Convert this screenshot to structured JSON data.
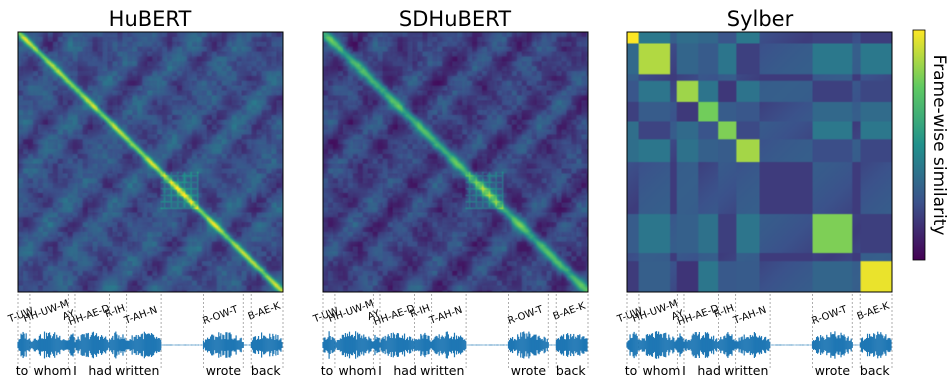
{
  "chart_data": {
    "type": "heatmap",
    "colormap": "viridis",
    "colorbar": {
      "label": "Frame-wise similarity"
    },
    "phoneme_segments": [
      {
        "label": "T-UW",
        "start": 0.0,
        "end": 0.045
      },
      {
        "label": "HH-UW-M",
        "start": 0.045,
        "end": 0.19
      },
      {
        "label": "AY",
        "start": 0.19,
        "end": 0.215
      },
      {
        "label": "HH-AE-D",
        "start": 0.215,
        "end": 0.345
      },
      {
        "label": "R-IH",
        "start": 0.345,
        "end": 0.41
      },
      {
        "label": "T-AH-N",
        "start": 0.41,
        "end": 0.54
      },
      {
        "label": "R-OW-T",
        "start": 0.7,
        "end": 0.85
      },
      {
        "label": "B-AE-K",
        "start": 0.88,
        "end": 1.0
      }
    ],
    "words": [
      {
        "label": "to",
        "pos": 0.015
      },
      {
        "label": "whom",
        "pos": 0.13
      },
      {
        "label": "I",
        "pos": 0.215
      },
      {
        "label": "had",
        "pos": 0.31
      },
      {
        "label": "written",
        "pos": 0.45
      },
      {
        "label": "wrote",
        "pos": 0.775
      },
      {
        "label": "back",
        "pos": 0.935
      }
    ],
    "panels": [
      {
        "title": "HuBERT",
        "model": "frame-level",
        "diagonal_similarity": 0.85,
        "off_diagonal_similarity": 0.25,
        "band_width": 0.04
      },
      {
        "title": "SDHuBERT",
        "model": "frame-level",
        "diagonal_similarity": 0.65,
        "off_diagonal_similarity": 0.2,
        "band_width": 0.06
      },
      {
        "title": "Sylber",
        "model": "segment-level",
        "background_similarity": 0.18,
        "blocks": [
          {
            "start": 0.0,
            "end": 0.045,
            "value": 1.0
          },
          {
            "start": 0.045,
            "end": 0.16,
            "value": 0.88
          },
          {
            "start": 0.19,
            "end": 0.27,
            "value": 0.85
          },
          {
            "start": 0.27,
            "end": 0.345,
            "value": 0.78
          },
          {
            "start": 0.345,
            "end": 0.41,
            "value": 0.8
          },
          {
            "start": 0.41,
            "end": 0.5,
            "value": 0.86
          },
          {
            "start": 0.7,
            "end": 0.85,
            "value": 0.8
          },
          {
            "start": 0.88,
            "end": 1.0,
            "value": 0.97
          }
        ]
      }
    ]
  }
}
